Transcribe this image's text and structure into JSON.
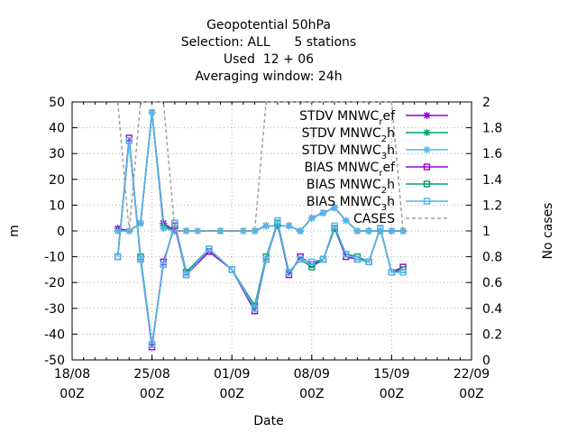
{
  "chart_data": {
    "type": "line",
    "title_lines": [
      "Geopotential 50hPa",
      "Selection: ALL      5 stations",
      "Used  12 + 06",
      "Averaging window: 24h"
    ],
    "xlabel": "Date",
    "ylabel": "m",
    "y2label": "No cases",
    "xlim": [
      "2017-08-18T00:00",
      "2017-09-22T00:00"
    ],
    "ylim": [
      -50,
      50
    ],
    "y2lim": [
      0,
      2
    ],
    "x_ticks": [
      {
        "date": "2017-08-18",
        "line1": "18/08",
        "line2": "00Z"
      },
      {
        "date": "2017-08-25",
        "line1": "25/08",
        "line2": "00Z"
      },
      {
        "date": "2017-09-01",
        "line1": "01/09",
        "line2": "00Z"
      },
      {
        "date": "2017-09-08",
        "line1": "08/09",
        "line2": "00Z"
      },
      {
        "date": "2017-09-15",
        "line1": "15/09",
        "line2": "00Z"
      },
      {
        "date": "2017-09-22",
        "line1": "22/09",
        "line2": "00Z"
      }
    ],
    "y_ticks": [
      -50,
      -40,
      -30,
      -20,
      -10,
      0,
      10,
      20,
      30,
      40,
      50
    ],
    "y2_ticks": [
      "0",
      "0.2",
      "0.4",
      "0.6",
      "0.8",
      "1",
      "1.2",
      "1.4",
      "1.6",
      "1.8",
      "2"
    ],
    "grid": true,
    "legend_position": "top-right",
    "series": [
      {
        "name": "STDV MNWC",
        "sub": "r",
        "suffix": "ef",
        "color": "#9400d3",
        "marker": "star",
        "axis": "y",
        "x": [
          "2017-08-22T00:00",
          "2017-08-23T00:00",
          "2017-08-24T00:00",
          "2017-08-25T00:00",
          "2017-08-26T00:00",
          "2017-08-27T00:00",
          "2017-08-28T00:00",
          "2017-08-29T00:00",
          "2017-08-31T00:00",
          "2017-09-02T00:00",
          "2017-09-03T00:00",
          "2017-09-04T00:00",
          "2017-09-05T00:00",
          "2017-09-06T00:00",
          "2017-09-07T00:00",
          "2017-09-08T00:00",
          "2017-09-09T00:00",
          "2017-09-10T00:00",
          "2017-09-11T00:00",
          "2017-09-12T00:00",
          "2017-09-13T00:00",
          "2017-09-14T00:00",
          "2017-09-15T00:00",
          "2017-09-16T00:00"
        ],
        "y": [
          1,
          0,
          3,
          46,
          3,
          0,
          0,
          0,
          0,
          0,
          0,
          2,
          2,
          2,
          0,
          5,
          7,
          9,
          4,
          0,
          0,
          0,
          0,
          0
        ]
      },
      {
        "name": "STDV MNWC",
        "sub": "2",
        "suffix": "h",
        "color": "#009e73",
        "marker": "star",
        "axis": "y",
        "x": [
          "2017-08-22T00:00",
          "2017-08-23T00:00",
          "2017-08-24T00:00",
          "2017-08-25T00:00",
          "2017-08-26T00:00",
          "2017-08-27T00:00",
          "2017-08-28T00:00",
          "2017-08-29T00:00",
          "2017-08-31T00:00",
          "2017-09-02T00:00",
          "2017-09-03T00:00",
          "2017-09-04T00:00",
          "2017-09-05T00:00",
          "2017-09-06T00:00",
          "2017-09-07T00:00",
          "2017-09-08T00:00",
          "2017-09-09T00:00",
          "2017-09-10T00:00",
          "2017-09-11T00:00",
          "2017-09-12T00:00",
          "2017-09-13T00:00",
          "2017-09-14T00:00",
          "2017-09-15T00:00",
          "2017-09-16T00:00"
        ],
        "y": [
          0,
          0,
          3,
          46,
          2,
          0,
          0,
          0,
          0,
          0,
          0,
          2,
          2,
          2,
          0,
          5,
          7,
          9,
          4,
          0,
          0,
          0,
          0,
          0
        ]
      },
      {
        "name": "STDV MNWC",
        "sub": "3",
        "suffix": "h",
        "color": "#56b4e9",
        "marker": "star",
        "axis": "y",
        "x": [
          "2017-08-22T00:00",
          "2017-08-23T00:00",
          "2017-08-24T00:00",
          "2017-08-25T00:00",
          "2017-08-26T00:00",
          "2017-08-27T00:00",
          "2017-08-28T00:00",
          "2017-08-29T00:00",
          "2017-08-31T00:00",
          "2017-09-02T00:00",
          "2017-09-03T00:00",
          "2017-09-04T00:00",
          "2017-09-05T00:00",
          "2017-09-06T00:00",
          "2017-09-07T00:00",
          "2017-09-08T00:00",
          "2017-09-09T00:00",
          "2017-09-10T00:00",
          "2017-09-11T00:00",
          "2017-09-12T00:00",
          "2017-09-13T00:00",
          "2017-09-14T00:00",
          "2017-09-15T00:00",
          "2017-09-16T00:00"
        ],
        "y": [
          0,
          0,
          3,
          46,
          1,
          0,
          0,
          0,
          0,
          0,
          0,
          2,
          2,
          2,
          0,
          5,
          7,
          9,
          4,
          0,
          0,
          0,
          0,
          0
        ]
      },
      {
        "name": "BIAS MNWC",
        "sub": "r",
        "suffix": "ef",
        "color": "#9400d3",
        "marker": "square",
        "axis": "y",
        "x": [
          "2017-08-22T00:00",
          "2017-08-23T00:00",
          "2017-08-24T00:00",
          "2017-08-25T00:00",
          "2017-08-26T00:00",
          "2017-08-27T00:00",
          "2017-08-28T00:00",
          "2017-08-30T00:00",
          "2017-09-01T00:00",
          "2017-09-03T00:00",
          "2017-09-04T00:00",
          "2017-09-05T00:00",
          "2017-09-06T00:00",
          "2017-09-07T00:00",
          "2017-09-08T00:00",
          "2017-09-09T00:00",
          "2017-09-10T00:00",
          "2017-09-11T00:00",
          "2017-09-12T00:00",
          "2017-09-13T00:00",
          "2017-09-14T00:00",
          "2017-09-15T00:00",
          "2017-09-16T00:00"
        ],
        "y": [
          -10,
          36,
          -11,
          -45,
          -12,
          2,
          -17,
          -8,
          -15,
          -31,
          -11,
          3,
          -17,
          -10,
          -13,
          -11,
          1,
          -10,
          -11,
          -12,
          1,
          -16,
          -14
        ]
      },
      {
        "name": "BIAS MNWC",
        "sub": "2",
        "suffix": "h",
        "color": "#009e73",
        "marker": "square",
        "axis": "y",
        "x": [
          "2017-08-22T00:00",
          "2017-08-23T00:00",
          "2017-08-24T00:00",
          "2017-08-25T00:00",
          "2017-08-26T00:00",
          "2017-08-27T00:00",
          "2017-08-28T00:00",
          "2017-08-30T00:00",
          "2017-09-01T00:00",
          "2017-09-03T00:00",
          "2017-09-04T00:00",
          "2017-09-05T00:00",
          "2017-09-06T00:00",
          "2017-09-07T00:00",
          "2017-09-08T00:00",
          "2017-09-09T00:00",
          "2017-09-10T00:00",
          "2017-09-11T00:00",
          "2017-09-12T00:00",
          "2017-09-13T00:00",
          "2017-09-14T00:00",
          "2017-09-15T00:00",
          "2017-09-16T00:00"
        ],
        "y": [
          -10,
          35,
          -10,
          -44,
          -13,
          3,
          -16,
          -7,
          -15,
          -29,
          -10,
          3,
          -16,
          -11,
          -14,
          -11,
          1,
          -9,
          -10,
          -12,
          1,
          -16,
          -15
        ]
      },
      {
        "name": "BIAS MNWC",
        "sub": "3",
        "suffix": "h",
        "color": "#56b4e9",
        "marker": "square",
        "axis": "y",
        "x": [
          "2017-08-22T00:00",
          "2017-08-23T00:00",
          "2017-08-24T00:00",
          "2017-08-25T00:00",
          "2017-08-26T00:00",
          "2017-08-27T00:00",
          "2017-08-28T00:00",
          "2017-08-30T00:00",
          "2017-09-01T00:00",
          "2017-09-03T00:00",
          "2017-09-04T00:00",
          "2017-09-05T00:00",
          "2017-09-06T00:00",
          "2017-09-07T00:00",
          "2017-09-08T00:00",
          "2017-09-09T00:00",
          "2017-09-10T00:00",
          "2017-09-11T00:00",
          "2017-09-12T00:00",
          "2017-09-13T00:00",
          "2017-09-14T00:00",
          "2017-09-15T00:00",
          "2017-09-16T00:00"
        ],
        "y": [
          -10,
          35,
          -11,
          -44,
          -13,
          3,
          -17,
          -7,
          -15,
          -30,
          -11,
          4,
          -16,
          -11,
          -12,
          -11,
          2,
          -9,
          -11,
          -12,
          1,
          -16,
          -16
        ]
      },
      {
        "name": "CASES",
        "color": "#a0a0a0",
        "marker": "none",
        "dashed": true,
        "axis": "y2",
        "x": [
          "2017-08-22T00:00",
          "2017-08-23T00:00",
          "2017-08-24T00:00",
          "2017-08-25T00:00",
          "2017-08-26T00:00",
          "2017-08-27T00:00",
          "2017-08-28T00:00",
          "2017-09-02T00:00",
          "2017-09-03T00:00",
          "2017-09-04T00:00",
          "2017-09-15T00:00",
          "2017-09-16T00:00"
        ],
        "y": [
          2,
          1,
          2,
          2,
          2,
          1,
          1,
          1,
          1,
          2,
          2,
          1
        ]
      }
    ]
  }
}
